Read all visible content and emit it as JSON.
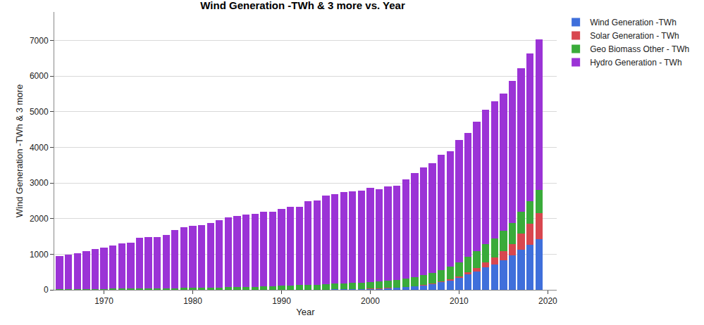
{
  "chart_data": {
    "type": "bar",
    "title": "Wind Generation -TWh & 3 more vs. Year",
    "x_label": "Year",
    "y_label": "Wind Generation -TWh & 3 more",
    "stacked": true,
    "grid": true,
    "legend": "top right",
    "x": [
      1965,
      1966,
      1967,
      1968,
      1969,
      1970,
      1971,
      1972,
      1973,
      1974,
      1975,
      1976,
      1977,
      1978,
      1979,
      1980,
      1981,
      1982,
      1983,
      1984,
      1985,
      1986,
      1987,
      1988,
      1989,
      1990,
      1991,
      1992,
      1993,
      1994,
      1995,
      1996,
      1997,
      1998,
      1999,
      2000,
      2001,
      2002,
      2003,
      2004,
      2005,
      2006,
      2007,
      2008,
      2009,
      2010,
      2011,
      2012,
      2013,
      2014,
      2015,
      2016,
      2017,
      2018,
      2019
    ],
    "xlim": [
      1964.4,
      2021
    ],
    "xticks": [
      1970,
      1980,
      1990,
      2000,
      2010,
      2020
    ],
    "ylim": [
      0,
      7800
    ],
    "yticks": [
      0,
      1000,
      2000,
      3000,
      4000,
      5000,
      6000,
      7000
    ],
    "series": [
      {
        "name": "Wind Generation -TWh",
        "color": "#3f6fdb",
        "values": [
          0,
          0,
          0,
          0,
          0,
          0,
          0,
          0,
          0,
          0,
          0,
          0,
          0,
          0,
          0,
          0,
          0,
          0,
          0,
          0,
          0,
          0,
          1,
          1,
          3,
          4,
          4,
          5,
          6,
          7,
          8,
          10,
          12,
          16,
          21,
          31,
          38,
          52,
          63,
          85,
          104,
          133,
          171,
          220,
          276,
          346,
          437,
          523,
          640,
          712,
          831,
          962,
          1135,
          1273,
          1430
        ]
      },
      {
        "name": "Solar Generation - TWh",
        "color": "#d8474f",
        "values": [
          0,
          0,
          0,
          0,
          0,
          0,
          0,
          0,
          0,
          0,
          0,
          0,
          0,
          0,
          0,
          0,
          0,
          0,
          0,
          0,
          0,
          0,
          0,
          0,
          0,
          0,
          0,
          0,
          0,
          0,
          0,
          0,
          0,
          0,
          0,
          1,
          1,
          2,
          2,
          3,
          4,
          6,
          8,
          12,
          20,
          33,
          64,
          99,
          135,
          190,
          251,
          329,
          444,
          580,
          724
        ]
      },
      {
        "name": "Geo Biomass Other - TWh",
        "color": "#3aab3a",
        "values": [
          20,
          22,
          23,
          25,
          26,
          28,
          30,
          32,
          34,
          37,
          40,
          43,
          46,
          49,
          52,
          55,
          58,
          62,
          66,
          70,
          75,
          80,
          85,
          92,
          100,
          110,
          118,
          125,
          133,
          140,
          150,
          158,
          165,
          172,
          180,
          190,
          195,
          205,
          218,
          232,
          250,
          270,
          292,
          320,
          350,
          390,
          420,
          460,
          500,
          530,
          570,
          590,
          620,
          640,
          660
        ]
      },
      {
        "name": "Hydro Generation - TWh",
        "color": "#9b33d6",
        "values": [
          920,
          968,
          997,
          1055,
          1114,
          1162,
          1220,
          1278,
          1296,
          1423,
          1440,
          1447,
          1494,
          1621,
          1708,
          1735,
          1762,
          1808,
          1884,
          1970,
          1995,
          2030,
          2044,
          2107,
          2097,
          2166,
          2208,
          2210,
          2351,
          2363,
          2482,
          2522,
          2563,
          2572,
          2589,
          2648,
          2586,
          2641,
          2637,
          2790,
          2912,
          3031,
          3079,
          3248,
          3244,
          3431,
          3489,
          3628,
          3775,
          3868,
          3848,
          3979,
          4031,
          4147,
          4216
        ]
      }
    ]
  }
}
